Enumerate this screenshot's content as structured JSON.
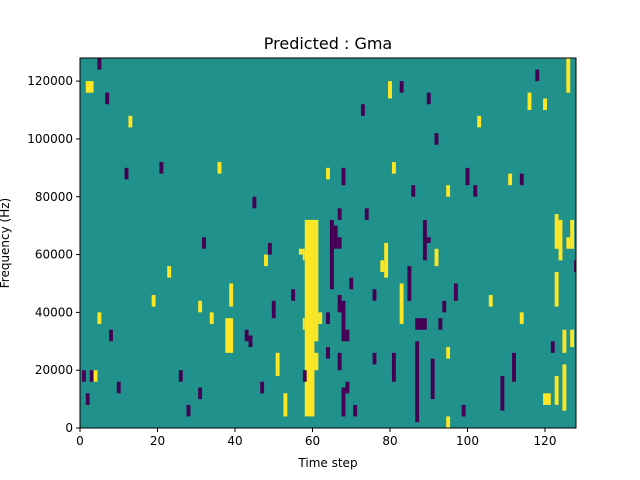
{
  "chart_data": {
    "type": "heatmap",
    "title": "Predicted : Gma",
    "xlabel": "Time step",
    "ylabel": "Frequency (Hz)",
    "xlim": [
      0,
      128
    ],
    "ylim": [
      0,
      128000
    ],
    "x_ticks": [
      {
        "value": 0,
        "label": "0"
      },
      {
        "value": 20,
        "label": "20"
      },
      {
        "value": 40,
        "label": "40"
      },
      {
        "value": 60,
        "label": "60"
      },
      {
        "value": 80,
        "label": "80"
      },
      {
        "value": 100,
        "label": "100"
      },
      {
        "value": 120,
        "label": "120"
      }
    ],
    "y_ticks": [
      {
        "value": 0,
        "label": "0"
      },
      {
        "value": 20000,
        "label": "20000"
      },
      {
        "value": 40000,
        "label": "40000"
      },
      {
        "value": 60000,
        "label": "60000"
      },
      {
        "value": 80000,
        "label": "80000"
      },
      {
        "value": 100000,
        "label": "100000"
      },
      {
        "value": 120000,
        "label": "120000"
      }
    ],
    "colormap": {
      "low": "#440154",
      "mid": "#21918c",
      "high": "#fde725"
    },
    "background_level": "mid",
    "levels": {
      "low": -1,
      "mid": 0,
      "high": 1
    },
    "grid": false,
    "cells": [
      {
        "x": 58,
        "x2": 60.5,
        "y": 4000,
        "y2": 72000,
        "level": "high"
      },
      {
        "x": 57.5,
        "x2": 58,
        "y": 34000,
        "y2": 38000,
        "level": "high"
      },
      {
        "x": 57.5,
        "x2": 58,
        "y": 58000,
        "y2": 62000,
        "level": "high"
      },
      {
        "x": 60.5,
        "x2": 61.5,
        "y": 30000,
        "y2": 72000,
        "level": "high"
      },
      {
        "x": 60.5,
        "x2": 61.5,
        "y": 20000,
        "y2": 26000,
        "level": "high"
      },
      {
        "x": 61.5,
        "x2": 62.5,
        "y": 36000,
        "y2": 40000,
        "level": "high"
      },
      {
        "x": 56.5,
        "x2": 57.5,
        "y": 60000,
        "y2": 62000,
        "level": "high"
      },
      {
        "x": 64.5,
        "x2": 65.5,
        "y": 48000,
        "y2": 72000,
        "level": "low"
      },
      {
        "x": 65.5,
        "x2": 66.5,
        "y": 62000,
        "y2": 70000,
        "level": "low"
      },
      {
        "x": 66.5,
        "x2": 67.5,
        "y": 62000,
        "y2": 66000,
        "level": "low"
      },
      {
        "x": 66.5,
        "x2": 67.5,
        "y": 72000,
        "y2": 76000,
        "level": "low"
      },
      {
        "x": 67.5,
        "x2": 68.5,
        "y": 4000,
        "y2": 14000,
        "level": "low"
      },
      {
        "x": 67.5,
        "x2": 68.5,
        "y": 30000,
        "y2": 44000,
        "level": "low"
      },
      {
        "x": 68.5,
        "x2": 69.5,
        "y": 30000,
        "y2": 34000,
        "level": "low"
      },
      {
        "x": 68.5,
        "x2": 69.5,
        "y": 12000,
        "y2": 16000,
        "level": "low"
      },
      {
        "x": 69.5,
        "x2": 70.5,
        "y": 48000,
        "y2": 52000,
        "level": "low"
      },
      {
        "x": 70.5,
        "x2": 71.5,
        "y": 4000,
        "y2": 8000,
        "level": "low"
      },
      {
        "x": 63.5,
        "x2": 64.5,
        "y": 36000,
        "y2": 40000,
        "level": "low"
      },
      {
        "x": 63.5,
        "x2": 64.5,
        "y": 24000,
        "y2": 28000,
        "level": "low"
      },
      {
        "x": 66.5,
        "x2": 67.5,
        "y": 40000,
        "y2": 46000,
        "level": "low"
      },
      {
        "x": 66.5,
        "x2": 67.5,
        "y": 20000,
        "y2": 26000,
        "level": "low"
      },
      {
        "x": 75.5,
        "x2": 76.5,
        "y": 22000,
        "y2": 26000,
        "level": "low"
      },
      {
        "x": 75.5,
        "x2": 76.5,
        "y": 44000,
        "y2": 48000,
        "level": "low"
      },
      {
        "x": 73.5,
        "x2": 74.5,
        "y": 72000,
        "y2": 76000,
        "level": "low"
      },
      {
        "x": 78.5,
        "x2": 79.5,
        "y": 52000,
        "y2": 64000,
        "level": "high"
      },
      {
        "x": 77.5,
        "x2": 78.5,
        "y": 54000,
        "y2": 58000,
        "level": "high"
      },
      {
        "x": 80.5,
        "x2": 81.5,
        "y": 16000,
        "y2": 26000,
        "level": "low"
      },
      {
        "x": 82.5,
        "x2": 83.5,
        "y": 36000,
        "y2": 50000,
        "level": "high"
      },
      {
        "x": 84.5,
        "x2": 85.5,
        "y": 44000,
        "y2": 56000,
        "level": "low"
      },
      {
        "x": 86.5,
        "x2": 87.5,
        "y": 2000,
        "y2": 30000,
        "level": "low"
      },
      {
        "x": 86.5,
        "x2": 89.5,
        "y": 34000,
        "y2": 38000,
        "level": "low"
      },
      {
        "x": 88.5,
        "x2": 89.5,
        "y": 58000,
        "y2": 72000,
        "level": "low"
      },
      {
        "x": 89.5,
        "x2": 90.5,
        "y": 64000,
        "y2": 66000,
        "level": "low"
      },
      {
        "x": 90.5,
        "x2": 91.5,
        "y": 10000,
        "y2": 24000,
        "level": "low"
      },
      {
        "x": 91.5,
        "x2": 92.5,
        "y": 56000,
        "y2": 62000,
        "level": "high"
      },
      {
        "x": 92.5,
        "x2": 93.5,
        "y": 34000,
        "y2": 38000,
        "level": "low"
      },
      {
        "x": 93.5,
        "x2": 94.5,
        "y": 40000,
        "y2": 44000,
        "level": "low"
      },
      {
        "x": 94.5,
        "x2": 95.5,
        "y": 24000,
        "y2": 28000,
        "level": "high"
      },
      {
        "x": 96.5,
        "x2": 97.5,
        "y": 44000,
        "y2": 50000,
        "level": "low"
      },
      {
        "x": 98.5,
        "x2": 99.5,
        "y": 4000,
        "y2": 8000,
        "level": "low"
      },
      {
        "x": 37.5,
        "x2": 39.5,
        "y": 26000,
        "y2": 38000,
        "level": "high"
      },
      {
        "x": 38.5,
        "x2": 39.5,
        "y": 42000,
        "y2": 50000,
        "level": "high"
      },
      {
        "x": 42.5,
        "x2": 43.5,
        "y": 30000,
        "y2": 34000,
        "level": "low"
      },
      {
        "x": 43.5,
        "x2": 44.5,
        "y": 28000,
        "y2": 32000,
        "level": "low"
      },
      {
        "x": 47.5,
        "x2": 48.5,
        "y": 56000,
        "y2": 60000,
        "level": "high"
      },
      {
        "x": 48.5,
        "x2": 49.5,
        "y": 60000,
        "y2": 64000,
        "level": "low"
      },
      {
        "x": 49.5,
        "x2": 50.5,
        "y": 38000,
        "y2": 44000,
        "level": "low"
      },
      {
        "x": 50.5,
        "x2": 51.5,
        "y": 18000,
        "y2": 26000,
        "level": "high"
      },
      {
        "x": 52.5,
        "x2": 53.5,
        "y": 4000,
        "y2": 12000,
        "level": "high"
      },
      {
        "x": 54.5,
        "x2": 55.5,
        "y": 44000,
        "y2": 48000,
        "level": "low"
      },
      {
        "x": 57.5,
        "x2": 58.5,
        "y": 16000,
        "y2": 20000,
        "level": "low"
      },
      {
        "x": 122.5,
        "x2": 123.5,
        "y": 8000,
        "y2": 18000,
        "level": "high"
      },
      {
        "x": 122.5,
        "x2": 123.5,
        "y": 42000,
        "y2": 54000,
        "level": "high"
      },
      {
        "x": 122.5,
        "x2": 123.5,
        "y": 62000,
        "y2": 74000,
        "level": "high"
      },
      {
        "x": 123.5,
        "x2": 124.5,
        "y": 58000,
        "y2": 72000,
        "level": "high"
      },
      {
        "x": 124.5,
        "x2": 125.5,
        "y": 26000,
        "y2": 34000,
        "level": "high"
      },
      {
        "x": 125.5,
        "x2": 126.5,
        "y": 116000,
        "y2": 128000,
        "level": "high"
      },
      {
        "x": 126.5,
        "x2": 127.5,
        "y": 62000,
        "y2": 72000,
        "level": "high"
      },
      {
        "x": 125.5,
        "x2": 126.5,
        "y": 62000,
        "y2": 66000,
        "level": "high"
      },
      {
        "x": 124.5,
        "x2": 125.5,
        "y": 6000,
        "y2": 22000,
        "level": "high"
      },
      {
        "x": 127.5,
        "x2": 128,
        "y": 54000,
        "y2": 58000,
        "level": "low"
      },
      {
        "x": 121.5,
        "x2": 122.5,
        "y": 26000,
        "y2": 30000,
        "level": "low"
      },
      {
        "x": 119.5,
        "x2": 121.5,
        "y": 8000,
        "y2": 12000,
        "level": "high"
      },
      {
        "x": 126.5,
        "x2": 127.5,
        "y": 28000,
        "y2": 34000,
        "level": "high"
      },
      {
        "x": 1.5,
        "x2": 3.5,
        "y": 116000,
        "y2": 120000,
        "level": "high"
      },
      {
        "x": 0.5,
        "x2": 1.5,
        "y": 16000,
        "y2": 20000,
        "level": "low"
      },
      {
        "x": 2.5,
        "x2": 3.5,
        "y": 16000,
        "y2": 20000,
        "level": "low"
      },
      {
        "x": 3.5,
        "x2": 4.5,
        "y": 16000,
        "y2": 20000,
        "level": "high"
      },
      {
        "x": 1.5,
        "x2": 2.5,
        "y": 8000,
        "y2": 12000,
        "level": "low"
      },
      {
        "x": 4.5,
        "x2": 5.5,
        "y": 124000,
        "y2": 128000,
        "level": "low"
      },
      {
        "x": 6.5,
        "x2": 7.5,
        "y": 112000,
        "y2": 116000,
        "level": "low"
      },
      {
        "x": 7.5,
        "x2": 8.5,
        "y": 30000,
        "y2": 34000,
        "level": "low"
      },
      {
        "x": 4.5,
        "x2": 5.5,
        "y": 36000,
        "y2": 40000,
        "level": "high"
      },
      {
        "x": 12.5,
        "x2": 13.5,
        "y": 104000,
        "y2": 108000,
        "level": "high"
      },
      {
        "x": 9.5,
        "x2": 10.5,
        "y": 12000,
        "y2": 16000,
        "level": "low"
      },
      {
        "x": 11.5,
        "x2": 12.5,
        "y": 86000,
        "y2": 90000,
        "level": "low"
      },
      {
        "x": 30.5,
        "x2": 31.5,
        "y": 10000,
        "y2": 14000,
        "level": "low"
      },
      {
        "x": 30.5,
        "x2": 31.5,
        "y": 40000,
        "y2": 44000,
        "level": "high"
      },
      {
        "x": 31.5,
        "x2": 32.5,
        "y": 62000,
        "y2": 66000,
        "level": "low"
      },
      {
        "x": 35.5,
        "x2": 36.5,
        "y": 88000,
        "y2": 92000,
        "level": "high"
      },
      {
        "x": 33.5,
        "x2": 34.5,
        "y": 36000,
        "y2": 40000,
        "level": "high"
      },
      {
        "x": 102.5,
        "x2": 103.5,
        "y": 104000,
        "y2": 108000,
        "level": "high"
      },
      {
        "x": 105.5,
        "x2": 106.5,
        "y": 42000,
        "y2": 46000,
        "level": "high"
      },
      {
        "x": 108.5,
        "x2": 109.5,
        "y": 6000,
        "y2": 18000,
        "level": "low"
      },
      {
        "x": 111.5,
        "x2": 112.5,
        "y": 16000,
        "y2": 26000,
        "level": "low"
      },
      {
        "x": 113.5,
        "x2": 114.5,
        "y": 36000,
        "y2": 40000,
        "level": "high"
      },
      {
        "x": 115.5,
        "x2": 116.5,
        "y": 110000,
        "y2": 116000,
        "level": "high"
      },
      {
        "x": 117.5,
        "x2": 118.5,
        "y": 120000,
        "y2": 124000,
        "level": "low"
      },
      {
        "x": 119.5,
        "x2": 120.5,
        "y": 110000,
        "y2": 114000,
        "level": "high"
      },
      {
        "x": 89.5,
        "x2": 90.5,
        "y": 112000,
        "y2": 116000,
        "level": "low"
      },
      {
        "x": 91.5,
        "x2": 92.5,
        "y": 98000,
        "y2": 102000,
        "level": "low"
      },
      {
        "x": 82.5,
        "x2": 83.5,
        "y": 116000,
        "y2": 120000,
        "level": "low"
      },
      {
        "x": 79.5,
        "x2": 80.5,
        "y": 114000,
        "y2": 120000,
        "level": "high"
      },
      {
        "x": 72.5,
        "x2": 73.5,
        "y": 108000,
        "y2": 112000,
        "level": "low"
      },
      {
        "x": 67.5,
        "x2": 68.5,
        "y": 84000,
        "y2": 90000,
        "level": "low"
      },
      {
        "x": 63.5,
        "x2": 64.5,
        "y": 86000,
        "y2": 90000,
        "level": "high"
      },
      {
        "x": 80.5,
        "x2": 81.5,
        "y": 88000,
        "y2": 92000,
        "level": "high"
      },
      {
        "x": 85.5,
        "x2": 86.5,
        "y": 80000,
        "y2": 84000,
        "level": "low"
      },
      {
        "x": 94.5,
        "x2": 95.5,
        "y": 80000,
        "y2": 84000,
        "level": "high"
      },
      {
        "x": 99.5,
        "x2": 100.5,
        "y": 84000,
        "y2": 90000,
        "level": "low"
      },
      {
        "x": 101.5,
        "x2": 102.5,
        "y": 80000,
        "y2": 84000,
        "level": "low"
      },
      {
        "x": 110.5,
        "x2": 111.5,
        "y": 84000,
        "y2": 88000,
        "level": "high"
      },
      {
        "x": 113.5,
        "x2": 114.5,
        "y": 84000,
        "y2": 88000,
        "level": "low"
      },
      {
        "x": 18.5,
        "x2": 19.5,
        "y": 42000,
        "y2": 46000,
        "level": "high"
      },
      {
        "x": 20.5,
        "x2": 21.5,
        "y": 88000,
        "y2": 92000,
        "level": "low"
      },
      {
        "x": 22.5,
        "x2": 23.5,
        "y": 52000,
        "y2": 56000,
        "level": "high"
      },
      {
        "x": 25.5,
        "x2": 26.5,
        "y": 16000,
        "y2": 20000,
        "level": "low"
      },
      {
        "x": 27.5,
        "x2": 28.5,
        "y": 4000,
        "y2": 8000,
        "level": "low"
      },
      {
        "x": 44.5,
        "x2": 45.5,
        "y": 76000,
        "y2": 80000,
        "level": "low"
      },
      {
        "x": 46.5,
        "x2": 47.5,
        "y": 12000,
        "y2": 16000,
        "level": "low"
      },
      {
        "x": 94.5,
        "x2": 95.5,
        "y": 0,
        "y2": 4000,
        "level": "high"
      }
    ]
  }
}
